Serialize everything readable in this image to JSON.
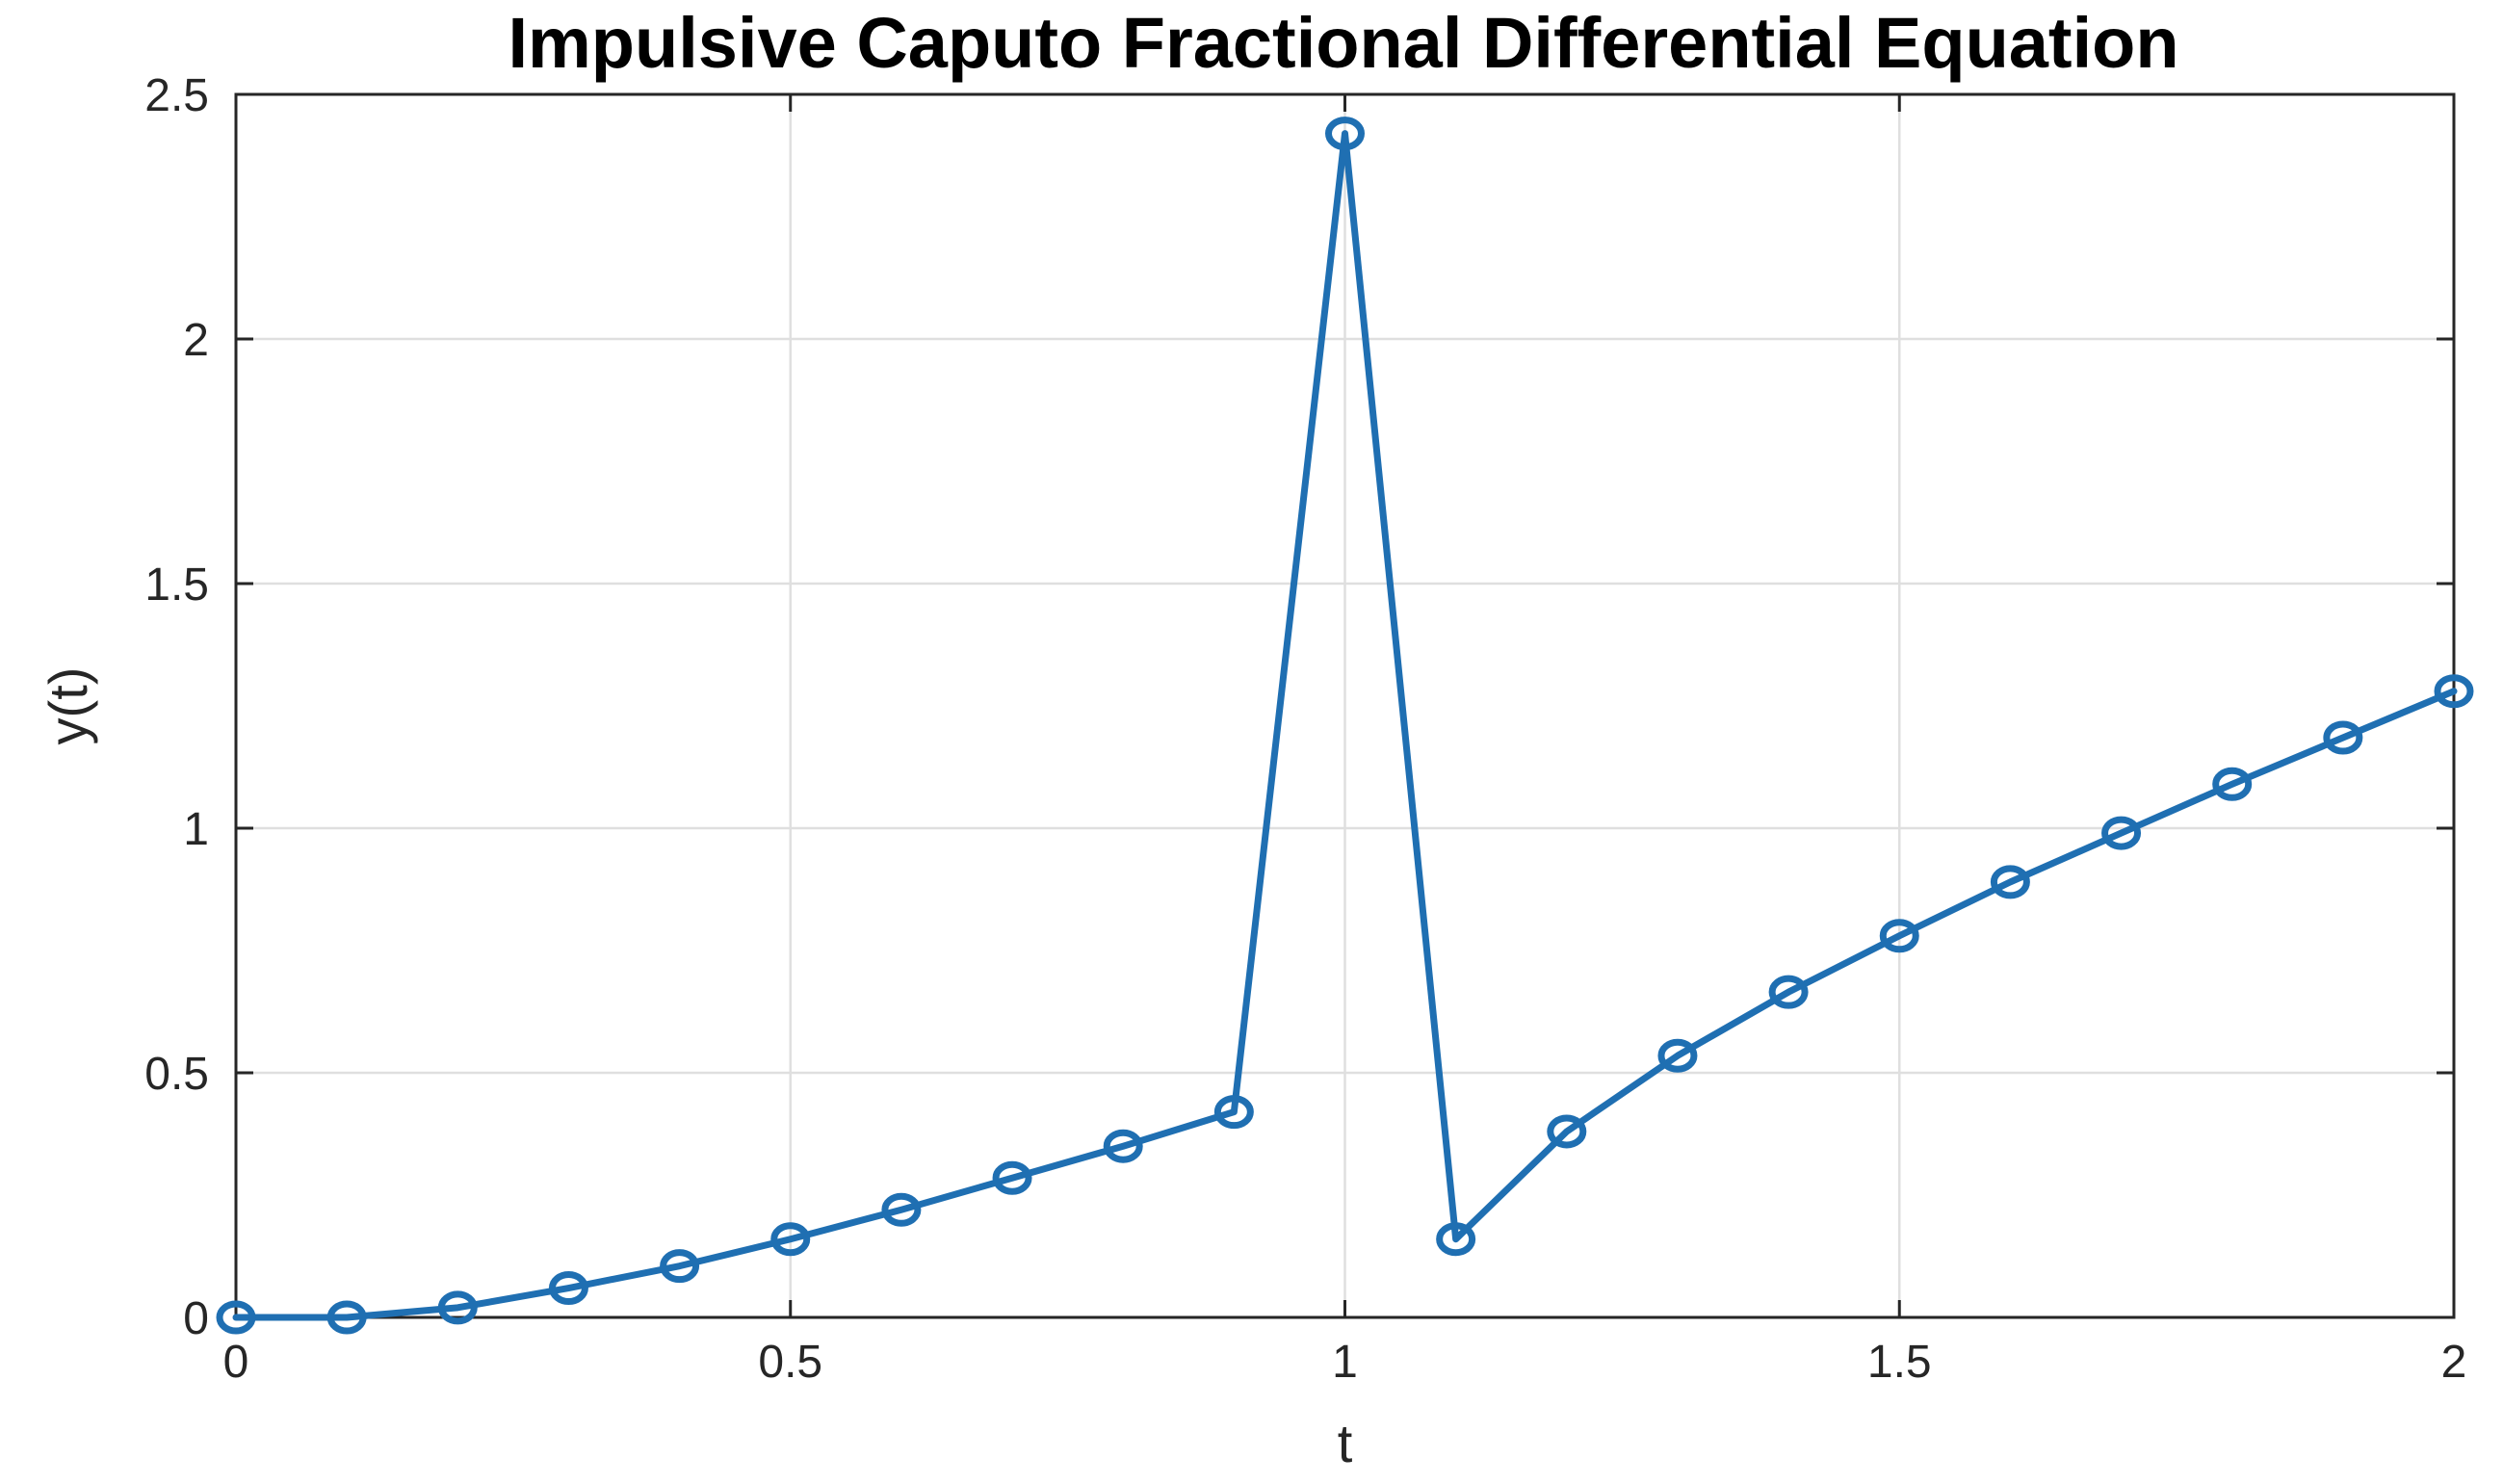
{
  "chart_data": {
    "type": "line",
    "title": "Impulsive Caputo Fractional Differential Equation",
    "xlabel": "t",
    "ylabel": "y(t)",
    "xlim": [
      0,
      2
    ],
    "ylim": [
      0,
      2.5
    ],
    "xticks": [
      0,
      0.5,
      1,
      1.5,
      2
    ],
    "xtick_labels": [
      "0",
      "0.5",
      "1",
      "1.5",
      "2"
    ],
    "yticks": [
      0,
      0.5,
      1,
      1.5,
      2,
      2.5
    ],
    "ytick_labels": [
      "0",
      "0.5",
      "1",
      "1.5",
      "2",
      "2.5"
    ],
    "grid": true,
    "legend": "none",
    "series": [
      {
        "color": "#1f6fb2",
        "marker": "circle",
        "x": [
          0,
          0.1,
          0.2,
          0.3,
          0.4,
          0.5,
          0.6,
          0.7,
          0.8,
          0.9,
          1.0,
          1.1,
          1.2,
          1.3,
          1.4,
          1.5,
          1.6,
          1.7,
          1.8,
          1.9,
          2.0
        ],
        "y": [
          0.0,
          0.0,
          0.02,
          0.06,
          0.105,
          0.16,
          0.22,
          0.285,
          0.35,
          0.42,
          2.42,
          0.16,
          0.38,
          0.535,
          0.665,
          0.78,
          0.89,
          0.99,
          1.09,
          1.185,
          1.28
        ]
      }
    ]
  }
}
